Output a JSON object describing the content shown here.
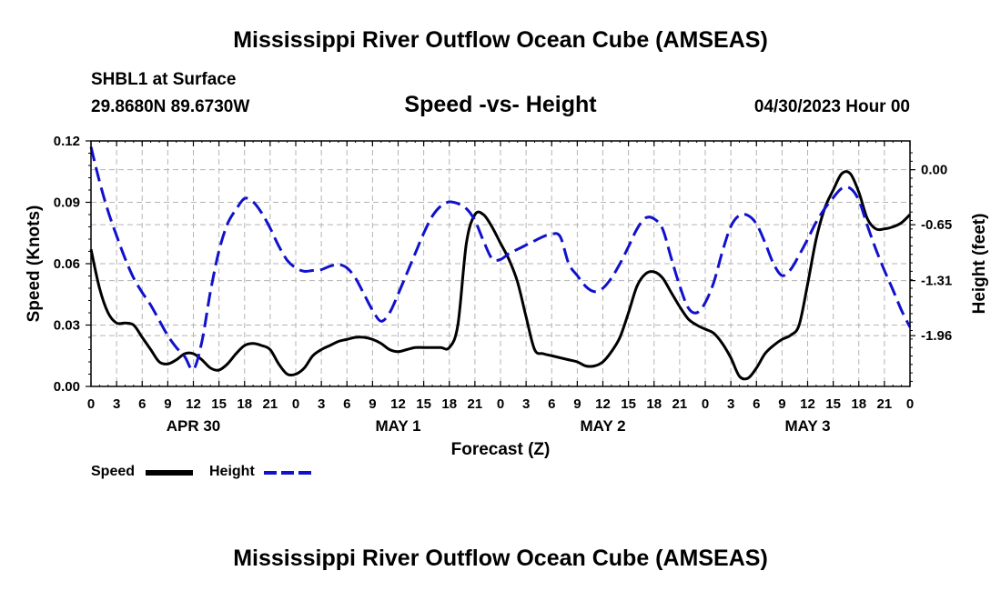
{
  "header": {
    "title": "Mississippi River Outflow Ocean Cube (AMSEAS)",
    "station": "SHBL1 at Surface",
    "coordinates": "29.8680N  89.6730W",
    "subtitle": "Speed -vs- Height",
    "datetime": "04/30/2023 Hour 00",
    "footer_title": "Mississippi River Outflow Ocean Cube (AMSEAS)"
  },
  "legend": {
    "speed_label": "Speed",
    "height_label": "Height"
  },
  "colors": {
    "speed": "#000000",
    "height": "#1111cc",
    "grid": "#b4b4b4"
  },
  "chart_data": {
    "type": "line",
    "title": "Speed -vs- Height",
    "xlabel": "Forecast (Z)",
    "ylabel": "Speed (Knots)",
    "ylabel_right": "Height (feet)",
    "xlim": [
      0,
      96
    ],
    "ylim": [
      0,
      0.12
    ],
    "ylim_right": [
      -2.56,
      0.34
    ],
    "x_ticks": [
      0,
      3,
      6,
      9,
      12,
      15,
      18,
      21,
      24,
      27,
      30,
      33,
      36,
      39,
      42,
      45,
      48,
      51,
      54,
      57,
      60,
      63,
      66,
      69,
      72,
      75,
      78,
      81,
      84,
      87,
      90,
      93,
      96
    ],
    "x_tick_labels": [
      "0",
      "3",
      "6",
      "9",
      "12",
      "15",
      "18",
      "21",
      "0",
      "3",
      "6",
      "9",
      "12",
      "15",
      "18",
      "21",
      "0",
      "3",
      "6",
      "9",
      "12",
      "15",
      "18",
      "21",
      "0",
      "3",
      "6",
      "9",
      "12",
      "15",
      "18",
      "21",
      "0"
    ],
    "day_labels": [
      {
        "x": 12,
        "label": "APR 30"
      },
      {
        "x": 36,
        "label": "MAY 1"
      },
      {
        "x": 60,
        "label": "MAY 2"
      },
      {
        "x": 84,
        "label": "MAY 3"
      }
    ],
    "y_ticks": [
      0.0,
      0.03,
      0.06,
      0.09,
      0.12
    ],
    "y_tick_labels": [
      "0.00",
      "0.03",
      "0.06",
      "0.09",
      "0.12"
    ],
    "y_right_ticks": [
      0.0,
      -0.65,
      -1.31,
      -1.96
    ],
    "y_right_tick_labels": [
      "0.00",
      "-0.65",
      "-1.31",
      "-1.96"
    ],
    "grid": true,
    "series": [
      {
        "name": "Speed",
        "axis": "left",
        "style": "solid",
        "x": [
          0,
          1,
          2,
          3,
          4,
          5,
          6,
          7,
          8,
          9,
          10,
          11,
          12,
          13,
          14,
          15,
          16,
          17,
          18,
          19,
          20,
          21,
          22,
          23,
          24,
          25,
          26,
          27,
          28,
          29,
          30,
          31,
          32,
          33,
          34,
          35,
          36,
          37,
          38,
          39,
          40,
          41,
          42,
          43,
          44,
          45,
          46,
          47,
          48,
          49,
          50,
          51,
          52,
          53,
          54,
          55,
          56,
          57,
          58,
          59,
          60,
          61,
          62,
          63,
          64,
          65,
          66,
          67,
          68,
          69,
          70,
          71,
          72,
          73,
          74,
          75,
          76,
          77,
          78,
          79,
          80,
          81,
          82,
          83,
          84,
          85,
          86,
          87,
          88,
          89,
          90,
          91,
          92,
          93,
          94,
          95,
          96
        ],
        "values": [
          0.067,
          0.048,
          0.036,
          0.031,
          0.031,
          0.03,
          0.024,
          0.018,
          0.012,
          0.011,
          0.013,
          0.016,
          0.016,
          0.013,
          0.009,
          0.008,
          0.011,
          0.016,
          0.02,
          0.021,
          0.02,
          0.018,
          0.011,
          0.006,
          0.006,
          0.009,
          0.015,
          0.018,
          0.02,
          0.022,
          0.023,
          0.024,
          0.024,
          0.023,
          0.021,
          0.018,
          0.017,
          0.018,
          0.019,
          0.019,
          0.019,
          0.019,
          0.019,
          0.03,
          0.07,
          0.084,
          0.084,
          0.078,
          0.07,
          0.062,
          0.051,
          0.034,
          0.018,
          0.016,
          0.015,
          0.014,
          0.013,
          0.012,
          0.01,
          0.01,
          0.012,
          0.017,
          0.024,
          0.036,
          0.049,
          0.055,
          0.056,
          0.053,
          0.046,
          0.039,
          0.033,
          0.03,
          0.028,
          0.026,
          0.021,
          0.014,
          0.005,
          0.004,
          0.009,
          0.016,
          0.02,
          0.023,
          0.025,
          0.03,
          0.05,
          0.072,
          0.087,
          0.096,
          0.104,
          0.104,
          0.095,
          0.082,
          0.077,
          0.077,
          0.078,
          0.08,
          0.084
        ]
      },
      {
        "name": "Height",
        "axis": "right",
        "style": "dashed",
        "x": [
          0,
          1,
          2,
          3,
          4,
          5,
          6,
          7,
          8,
          9,
          10,
          11,
          12,
          13,
          14,
          15,
          16,
          17,
          18,
          19,
          20,
          21,
          22,
          23,
          24,
          25,
          26,
          27,
          28,
          29,
          30,
          31,
          32,
          33,
          34,
          35,
          36,
          37,
          38,
          39,
          40,
          41,
          42,
          43,
          44,
          45,
          46,
          47,
          48,
          49,
          50,
          51,
          52,
          53,
          54,
          55,
          56,
          57,
          58,
          59,
          60,
          61,
          62,
          63,
          64,
          65,
          66,
          67,
          68,
          69,
          70,
          71,
          72,
          73,
          74,
          75,
          76,
          77,
          78,
          79,
          80,
          81,
          82,
          83,
          84,
          85,
          86,
          87,
          88,
          89,
          90,
          91,
          92,
          93,
          94,
          95,
          96
        ],
        "values": [
          0.27,
          -0.14,
          -0.49,
          -0.78,
          -1.05,
          -1.28,
          -1.45,
          -1.6,
          -1.78,
          -1.96,
          -2.1,
          -2.21,
          -2.36,
          -2.03,
          -1.44,
          -0.96,
          -0.64,
          -0.47,
          -0.34,
          -0.38,
          -0.51,
          -0.69,
          -0.9,
          -1.07,
          -1.16,
          -1.2,
          -1.19,
          -1.18,
          -1.14,
          -1.12,
          -1.16,
          -1.28,
          -1.47,
          -1.66,
          -1.79,
          -1.69,
          -1.47,
          -1.23,
          -0.99,
          -0.75,
          -0.55,
          -0.43,
          -0.38,
          -0.4,
          -0.46,
          -0.6,
          -0.84,
          -1.05,
          -1.06,
          -0.99,
          -0.94,
          -0.89,
          -0.84,
          -0.79,
          -0.76,
          -0.79,
          -1.11,
          -1.25,
          -1.38,
          -1.44,
          -1.4,
          -1.28,
          -1.11,
          -0.91,
          -0.7,
          -0.57,
          -0.58,
          -0.7,
          -1.04,
          -1.37,
          -1.63,
          -1.69,
          -1.57,
          -1.33,
          -0.97,
          -0.67,
          -0.54,
          -0.54,
          -0.64,
          -0.86,
          -1.11,
          -1.25,
          -1.18,
          -1.01,
          -0.82,
          -0.62,
          -0.46,
          -0.33,
          -0.22,
          -0.22,
          -0.36,
          -0.66,
          -0.94,
          -1.19,
          -1.42,
          -1.66,
          -1.86
        ]
      }
    ]
  }
}
